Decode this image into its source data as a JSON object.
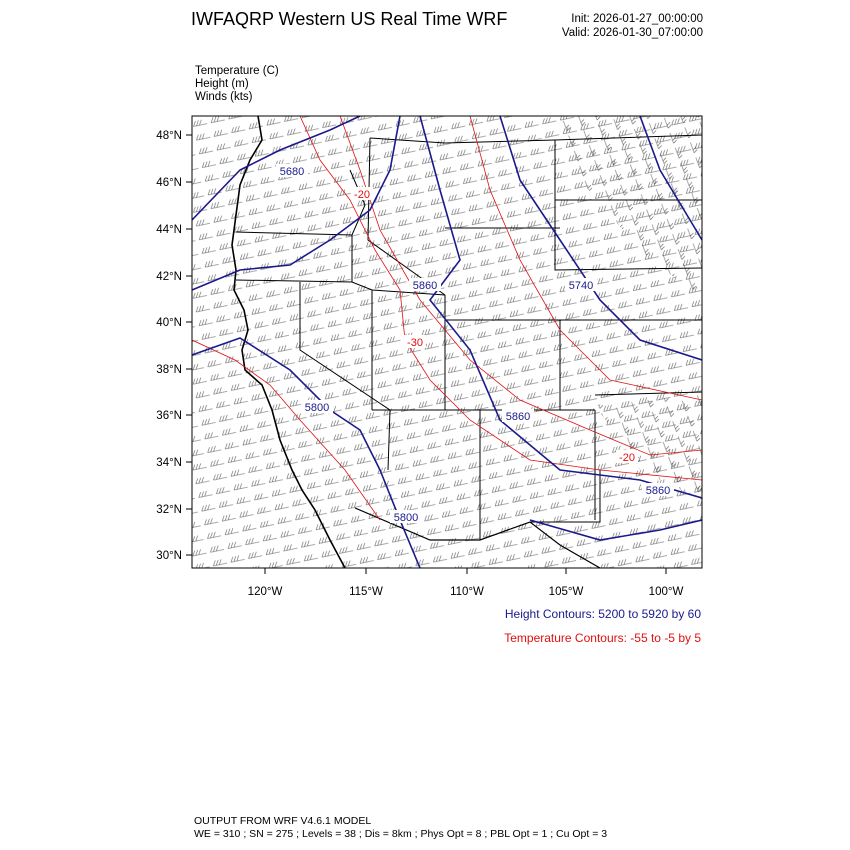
{
  "header": {
    "title": "IWFAQRP Western US Real Time WRF",
    "init": "Init: 2026-01-27_00:00:00",
    "valid": "Valid: 2026-01-30_07:00:00"
  },
  "fields": [
    "Temperature   (C)",
    "Height   (m)",
    "Winds   (kts)"
  ],
  "map": {
    "lat_labels": [
      "48°N",
      "46°N",
      "44°N",
      "42°N",
      "40°N",
      "38°N",
      "36°N",
      "34°N",
      "32°N",
      "30°N"
    ],
    "lon_labels": [
      "120°W",
      "115°W",
      "110°W",
      "105°W",
      "100°W"
    ],
    "height_labels": [
      "5680",
      "5800",
      "5860",
      "5740",
      "5860",
      "5800",
      "5860"
    ],
    "temp_labels": [
      "-20",
      "-30",
      "-20"
    ]
  },
  "legend": {
    "height": "Height Contours: 5200 to 5920 by 60",
    "temperature": "Temperature Contours: -55 to -5 by 5"
  },
  "footer": {
    "line1": "OUTPUT FROM WRF V4.6.1 MODEL",
    "line2": "WE = 310 ; SN = 275 ; Levels = 38 ; Dis = 8km ; Phys Opt = 8 ; PBL Opt = 1 ; Cu Opt = 3"
  },
  "colors": {
    "height_contour": "#1a1a8c",
    "temperature_contour": "#e01010",
    "border": "#000000"
  }
}
